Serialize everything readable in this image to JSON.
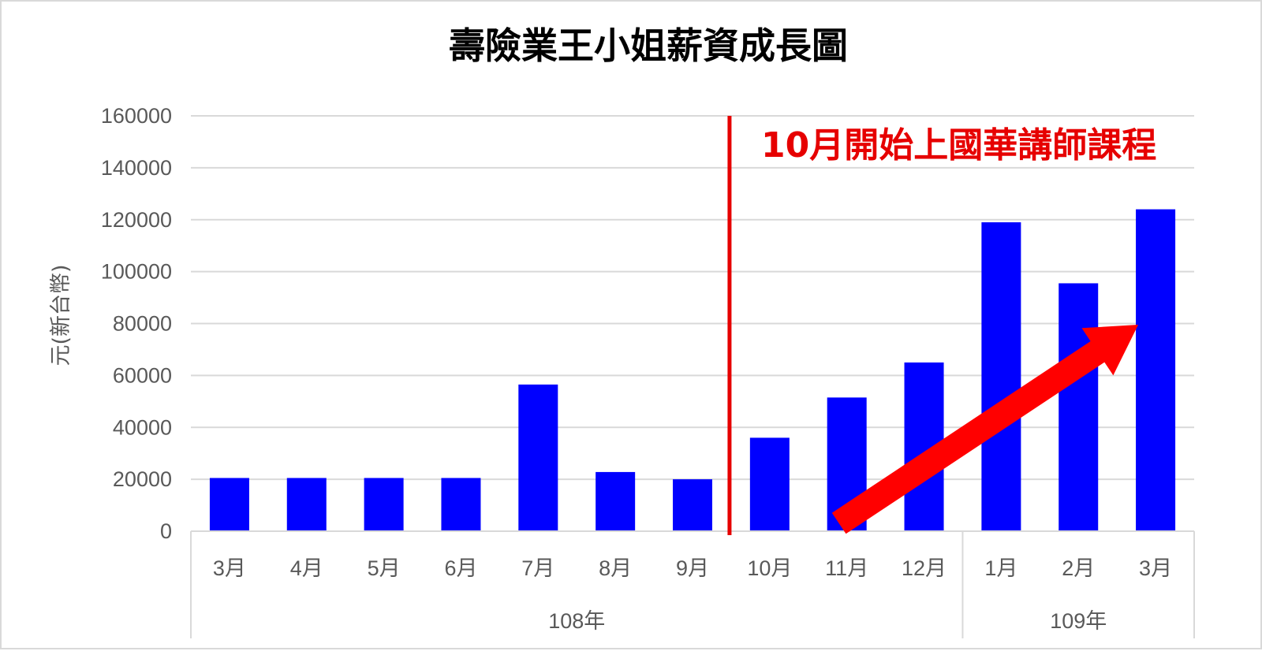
{
  "chart_data": {
    "type": "bar",
    "title": "壽險業王小姐薪資成長圖",
    "ylabel": "元(新台幣)",
    "xlabel": "",
    "ylim": [
      0,
      160000
    ],
    "yticks": [
      "0",
      "20000",
      "40000",
      "60000",
      "80000",
      "100000",
      "120000",
      "140000",
      "160000"
    ],
    "categories": [
      "3月",
      "4月",
      "5月",
      "6月",
      "7月",
      "8月",
      "9月",
      "10月",
      "11月",
      "12月",
      "1月",
      "2月",
      "3月"
    ],
    "values": [
      20500,
      20500,
      20500,
      20500,
      56500,
      22800,
      20000,
      36000,
      51500,
      65000,
      119000,
      95500,
      124000
    ],
    "groups": [
      {
        "label": "108年",
        "start": 0,
        "end": 9
      },
      {
        "label": "109年",
        "start": 10,
        "end": 12
      }
    ],
    "grid": true,
    "legend": "none",
    "bar_color": "#0000ff",
    "annotation": {
      "text": "10月開始上國華講師課程",
      "after_category_index": 6,
      "color": "#e60000",
      "arrow": "upward trend arrow from 11月 to 3月"
    }
  }
}
